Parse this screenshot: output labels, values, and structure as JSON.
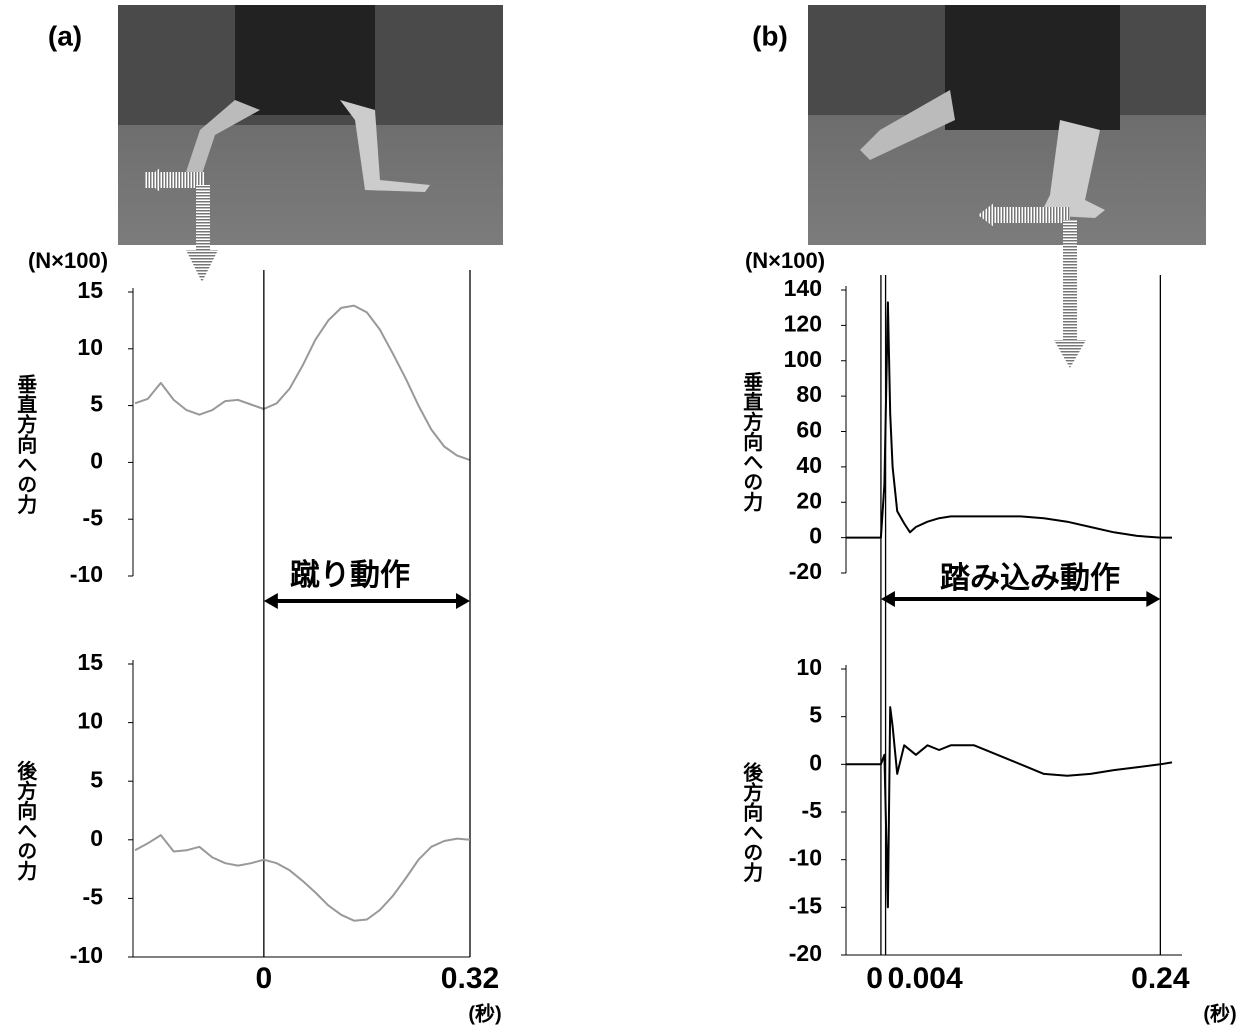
{
  "chart_data": [
    {
      "type": "line",
      "panel_label": "(a)",
      "y_unit": "(N×100)",
      "y_label": "垂直方向への力",
      "annotation": "蹴り動作",
      "x": [
        -0.2,
        -0.18,
        -0.16,
        -0.14,
        -0.12,
        -0.1,
        -0.08,
        -0.06,
        -0.04,
        -0.02,
        0,
        0.02,
        0.04,
        0.06,
        0.08,
        0.1,
        0.12,
        0.14,
        0.16,
        0.18,
        0.2,
        0.22,
        0.24,
        0.26,
        0.28,
        0.3,
        0.32
      ],
      "series": [
        {
          "color": "#999999",
          "values": [
            5.2,
            5.6,
            7.0,
            5.5,
            4.6,
            4.2,
            4.6,
            5.4,
            5.5,
            5.1,
            4.7,
            5.2,
            6.5,
            8.5,
            10.8,
            12.5,
            13.6,
            13.8,
            13.2,
            11.7,
            9.6,
            7.4,
            5.0,
            2.9,
            1.4,
            0.6,
            0.2
          ]
        }
      ],
      "xlim": [
        -0.2,
        0.32
      ],
      "ylim": [
        -10,
        15
      ],
      "yticks": [
        -10,
        -5,
        0,
        5,
        10,
        15
      ]
    },
    {
      "type": "line",
      "y_label": "後方向への力",
      "x_unit": "(秒)",
      "x": [
        -0.2,
        -0.18,
        -0.16,
        -0.14,
        -0.12,
        -0.1,
        -0.08,
        -0.06,
        -0.04,
        -0.02,
        0,
        0.02,
        0.04,
        0.06,
        0.08,
        0.1,
        0.12,
        0.14,
        0.16,
        0.18,
        0.2,
        0.22,
        0.24,
        0.26,
        0.28,
        0.3,
        0.32
      ],
      "series": [
        {
          "color": "#999999",
          "values": [
            -0.9,
            -0.3,
            0.4,
            -1.0,
            -0.9,
            -0.6,
            -1.5,
            -2.0,
            -2.2,
            -2.0,
            -1.7,
            -2.0,
            -2.6,
            -3.5,
            -4.5,
            -5.6,
            -6.4,
            -6.9,
            -6.8,
            -6.0,
            -4.8,
            -3.3,
            -1.7,
            -0.6,
            -0.1,
            0.1,
            0.0
          ]
        }
      ],
      "xlim": [
        -0.2,
        0.32
      ],
      "ylim": [
        -10,
        15
      ],
      "yticks": [
        -10,
        -5,
        0,
        5,
        10,
        15
      ],
      "xticks": [
        0,
        0.32
      ]
    },
    {
      "type": "line",
      "panel_label": "(b)",
      "y_unit": "(N×100)",
      "y_label": "垂直方向への力",
      "annotation": "踏み込み動作",
      "x": [
        -0.03,
        0,
        0.003,
        0.006,
        0.008,
        0.01,
        0.014,
        0.02,
        0.025,
        0.03,
        0.04,
        0.05,
        0.06,
        0.08,
        0.1,
        0.12,
        0.14,
        0.16,
        0.18,
        0.2,
        0.22,
        0.24,
        0.25
      ],
      "series": [
        {
          "color": "#000000",
          "values": [
            0,
            0,
            30,
            133,
            70,
            40,
            15,
            8,
            3,
            6,
            9,
            11,
            12,
            12,
            12,
            12,
            11,
            9,
            6,
            3,
            1,
            0,
            0
          ]
        }
      ],
      "xlim": [
        -0.03,
        0.25
      ],
      "ylim": [
        -20,
        140
      ],
      "yticks": [
        -20,
        0,
        20,
        40,
        60,
        80,
        100,
        120,
        140
      ]
    },
    {
      "type": "line",
      "y_label": "後方向への力",
      "x_unit": "(秒)",
      "x": [
        -0.03,
        0,
        0.003,
        0.006,
        0.008,
        0.01,
        0.014,
        0.02,
        0.03,
        0.04,
        0.05,
        0.06,
        0.08,
        0.1,
        0.12,
        0.14,
        0.16,
        0.18,
        0.2,
        0.22,
        0.24,
        0.25
      ],
      "series": [
        {
          "color": "#000000",
          "values": [
            0,
            0,
            1,
            -15,
            6,
            4,
            -1,
            2,
            1,
            2,
            1.5,
            2,
            2,
            1,
            0,
            -1,
            -1.2,
            -1,
            -0.6,
            -0.3,
            0,
            0.2
          ]
        }
      ],
      "xlim": [
        -0.03,
        0.25
      ],
      "ylim": [
        -20,
        10
      ],
      "yticks": [
        -20,
        -15,
        -10,
        -5,
        0,
        5,
        10
      ],
      "xticks": [
        0,
        0.004,
        0.24
      ]
    }
  ]
}
